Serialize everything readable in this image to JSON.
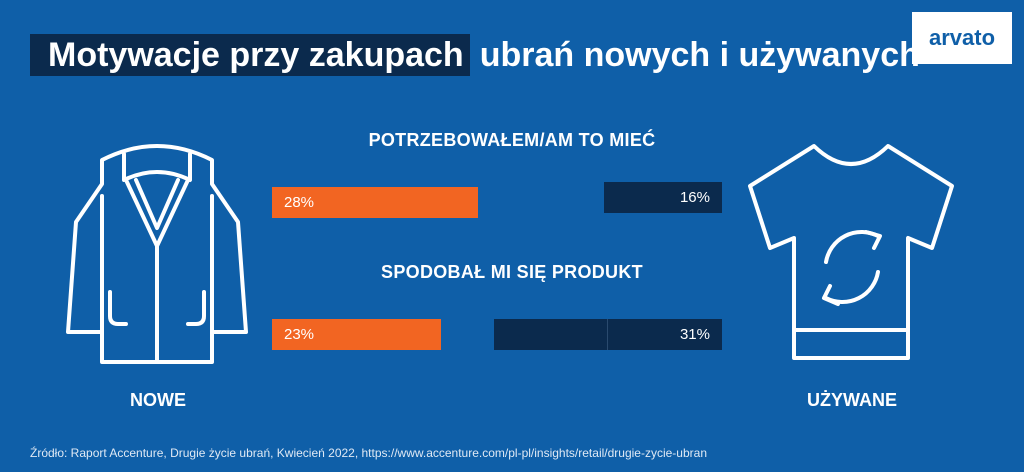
{
  "title": {
    "highlight": "Motywacje przy zakupach",
    "rest": "ubrań nowych i używanych"
  },
  "logo": {
    "text": "arvato"
  },
  "colors": {
    "background": "#0f5fa8",
    "new": "#f26522",
    "used": "#0b2a4d"
  },
  "icons": {
    "new": "jacket-icon",
    "used": "recycled-shirt-icon"
  },
  "labels": {
    "new": "NOWE",
    "used": "UŻYWANE"
  },
  "source": "Źródło: Raport Accenture, Drugie życie ubrań, Kwiecień 2022, https://www.accenture.com/pl-pl/insights/retail/drugie-zycie-ubran",
  "chart_data": {
    "type": "bar",
    "categories": [
      "POTRZEBOWAŁEM/AM TO MIEĆ",
      "SPODOBAŁ MI SIĘ PRODUKT"
    ],
    "series": [
      {
        "name": "NOWE",
        "values": [
          28,
          23
        ],
        "labels": [
          "28%",
          "23%"
        ],
        "color": "#f26522"
      },
      {
        "name": "UŻYWANE",
        "values": [
          16,
          31
        ],
        "labels": [
          "16%",
          "31%"
        ],
        "color": "#0b2a4d"
      }
    ],
    "unit": "%"
  }
}
